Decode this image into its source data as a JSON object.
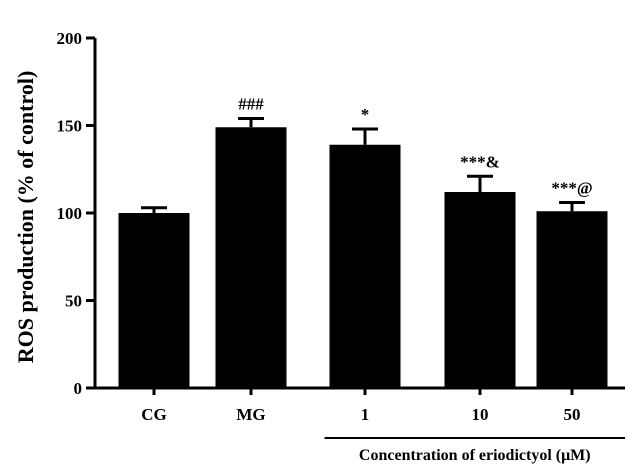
{
  "chart_data": {
    "type": "bar",
    "categories": [
      "CG",
      "MG",
      "1",
      "10",
      "50"
    ],
    "values": [
      100,
      149,
      139,
      112,
      101
    ],
    "errors": [
      3,
      5,
      9,
      9,
      5
    ],
    "annotations": [
      "",
      "###",
      "*",
      "***&",
      "***@"
    ],
    "title": "",
    "ylabel": "ROS production (% of control)",
    "xlabel": "Concentration of eriodictyol (μM)",
    "xlabel_spans_categories": [
      "1",
      "10",
      "50"
    ],
    "ylim": [
      0,
      200
    ],
    "yticks": [
      0,
      50,
      100,
      150,
      200
    ],
    "grid": false,
    "bar_color": "#000000"
  }
}
